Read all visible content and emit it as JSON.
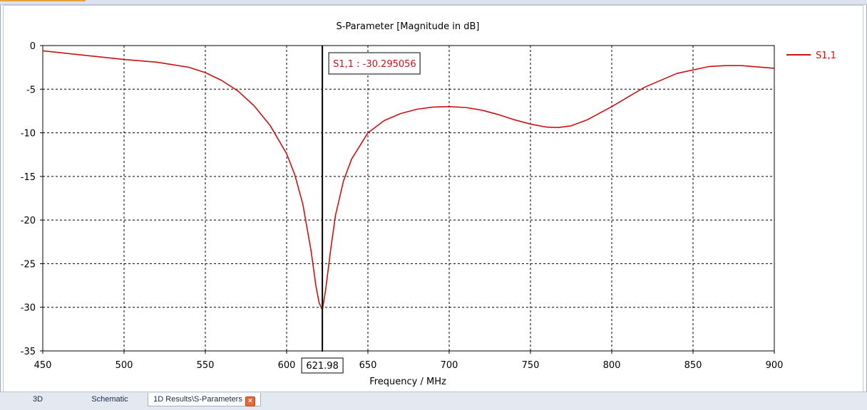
{
  "tabs": [
    {
      "label": "3D",
      "active": false
    },
    {
      "label": "Schematic",
      "active": false
    },
    {
      "label": "1D Results\\S-Parameters",
      "active": true
    }
  ],
  "chart_data": {
    "type": "line",
    "title": "S-Parameter [Magnitude in dB]",
    "xlabel": "Frequency / MHz",
    "ylabel": "",
    "xlim": [
      450,
      900
    ],
    "ylim": [
      -35,
      0
    ],
    "xticks": [
      450,
      500,
      550,
      600,
      650,
      700,
      750,
      800,
      850,
      900
    ],
    "yticks": [
      0,
      -5,
      -10,
      -15,
      -20,
      -25,
      -30,
      -35
    ],
    "grid": true,
    "legend_position": "top-right",
    "series": [
      {
        "name": "S1,1",
        "color": "#cc1111",
        "x": [
          450,
          460,
          480,
          500,
          520,
          540,
          550,
          560,
          570,
          580,
          590,
          600,
          605,
          610,
          615,
          618,
          620,
          621.98,
          624,
          627,
          630,
          635,
          640,
          650,
          660,
          670,
          680,
          690,
          700,
          710,
          720,
          730,
          740,
          750,
          760,
          767,
          775,
          785,
          800,
          820,
          840,
          860,
          870,
          880,
          900
        ],
        "y": [
          -0.6,
          -0.8,
          -1.2,
          -1.6,
          -1.9,
          -2.5,
          -3.1,
          -4.0,
          -5.2,
          -6.9,
          -9.2,
          -12.4,
          -14.8,
          -18.2,
          -23.5,
          -27.5,
          -29.5,
          -30.3,
          -28.0,
          -23.5,
          -19.5,
          -15.5,
          -13.0,
          -10.0,
          -8.6,
          -7.8,
          -7.3,
          -7.05,
          -7.0,
          -7.1,
          -7.4,
          -7.9,
          -8.5,
          -9.0,
          -9.35,
          -9.4,
          -9.2,
          -8.5,
          -7.0,
          -4.8,
          -3.2,
          -2.4,
          -2.3,
          -2.3,
          -2.6
        ]
      }
    ],
    "marker": {
      "x": 621.98,
      "x_label": "621.98",
      "readout": "S1,1 : -30.295056"
    }
  }
}
